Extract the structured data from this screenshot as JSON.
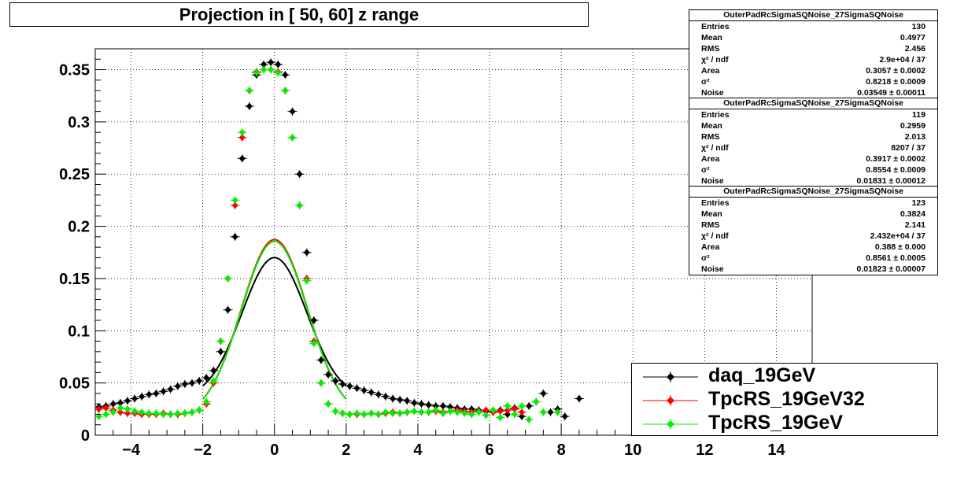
{
  "title": "Projection in [  50,  60] z range",
  "stats_boxes": [
    {
      "title": "OuterPadRcSigmaSQNoise_27SigmaSQNoise",
      "rows": [
        {
          "label": "Entries",
          "value": "130"
        },
        {
          "label": "Mean",
          "value": "0.4977"
        },
        {
          "label": "RMS",
          "value": "2.456"
        },
        {
          "label": "χ² / ndf",
          "value": "2.9e+04 / 37"
        },
        {
          "label": "Area",
          "value": "0.3057 ± 0.0002"
        },
        {
          "label": "σ²",
          "value": "0.8218 ± 0.0009"
        },
        {
          "label": "Noise",
          "value": "0.03549 ± 0.00011"
        }
      ]
    },
    {
      "title": "OuterPadRcSigmaSQNoise_27SigmaSQNoise",
      "rows": [
        {
          "label": "Entries",
          "value": "119"
        },
        {
          "label": "Mean",
          "value": "0.2959"
        },
        {
          "label": "RMS",
          "value": "2.013"
        },
        {
          "label": "χ² / ndf",
          "value": "8207 / 37"
        },
        {
          "label": "Area",
          "value": "0.3917 ± 0.0002"
        },
        {
          "label": "σ²",
          "value": "0.8554 ± 0.0009"
        },
        {
          "label": "Noise",
          "value": "0.01831 ± 0.00012"
        }
      ]
    },
    {
      "title": "OuterPadRcSigmaSQNoise_27SigmaSQNoise",
      "rows": [
        {
          "label": "Entries",
          "value": "123"
        },
        {
          "label": "Mean",
          "value": "0.3824"
        },
        {
          "label": "RMS",
          "value": "2.141"
        },
        {
          "label": "χ² / ndf",
          "value": "2.432e+04 / 37"
        },
        {
          "label": "Area",
          "value": "0.388 ± 0.000"
        },
        {
          "label": "σ²",
          "value": "0.8561 ± 0.0005"
        },
        {
          "label": "Noise",
          "value": "0.01823 ± 0.00007"
        }
      ]
    }
  ],
  "chart_data": {
    "type": "scatter",
    "xlim": [
      -5,
      15
    ],
    "ylim": [
      0,
      0.37
    ],
    "grid": true,
    "legend_position": "bottom-right",
    "x_ticks": [
      "−4",
      "−2",
      "0",
      "2",
      "4",
      "6",
      "8",
      "10",
      "12",
      "14"
    ],
    "x_tick_values": [
      -4,
      -2,
      0,
      2,
      4,
      6,
      8,
      10,
      12,
      14
    ],
    "y_ticks": [
      "0",
      "0.05",
      "0.1",
      "0.15",
      "0.2",
      "0.25",
      "0.3",
      "0.35"
    ],
    "y_tick_values": [
      0,
      0.05,
      0.1,
      0.15,
      0.2,
      0.25,
      0.3,
      0.35
    ],
    "series": [
      {
        "name": "daq_19GeV",
        "color": "#000000",
        "x": [
          -4.9,
          -4.7,
          -4.5,
          -4.3,
          -4.1,
          -3.9,
          -3.7,
          -3.5,
          -3.3,
          -3.1,
          -2.9,
          -2.7,
          -2.5,
          -2.3,
          -2.1,
          -1.9,
          -1.7,
          -1.5,
          -1.3,
          -1.1,
          -0.9,
          -0.7,
          -0.5,
          -0.3,
          -0.1,
          0.1,
          0.3,
          0.5,
          0.7,
          0.9,
          1.1,
          1.3,
          1.5,
          1.7,
          1.9,
          2.1,
          2.3,
          2.5,
          2.7,
          2.9,
          3.1,
          3.3,
          3.5,
          3.7,
          3.9,
          4.1,
          4.3,
          4.5,
          4.7,
          4.9,
          5.1,
          5.3,
          5.5,
          5.7,
          5.9,
          6.1,
          6.3,
          6.5,
          6.7,
          6.9,
          7.1,
          7.3,
          7.5,
          7.7,
          7.9,
          8.1,
          8.5
        ],
        "y": [
          0.027,
          0.028,
          0.03,
          0.031,
          0.033,
          0.035,
          0.037,
          0.039,
          0.04,
          0.042,
          0.044,
          0.047,
          0.049,
          0.05,
          0.052,
          0.055,
          0.062,
          0.08,
          0.12,
          0.19,
          0.265,
          0.315,
          0.345,
          0.355,
          0.357,
          0.355,
          0.345,
          0.31,
          0.25,
          0.175,
          0.11,
          0.072,
          0.058,
          0.052,
          0.049,
          0.047,
          0.045,
          0.043,
          0.041,
          0.039,
          0.037,
          0.035,
          0.034,
          0.033,
          0.031,
          0.03,
          0.029,
          0.028,
          0.028,
          0.027,
          0.026,
          0.025,
          0.025,
          0.024,
          0.023,
          0.022,
          0.024,
          0.02,
          0.026,
          0.018,
          0.028,
          0.032,
          0.04,
          0.022,
          0.025,
          0.018,
          0.035
        ]
      },
      {
        "name": "TpcRS_19GeV32",
        "color": "#ff0000",
        "x": [
          -4.9,
          -4.7,
          -4.5,
          -4.3,
          -4.1,
          -3.9,
          -3.7,
          -3.5,
          -3.3,
          -3.1,
          -2.9,
          -2.7,
          -2.5,
          -2.3,
          -2.1,
          -1.9,
          -1.7,
          -1.5,
          -1.3,
          -1.1,
          -0.9,
          -0.7,
          -0.5,
          -0.3,
          -0.1,
          0.1,
          0.3,
          0.5,
          0.7,
          0.9,
          1.1,
          1.3,
          1.5,
          1.7,
          1.9,
          2.1,
          2.3,
          2.5,
          2.7,
          2.9,
          3.1,
          3.3,
          3.5,
          3.7,
          3.9,
          4.1,
          4.3,
          4.5,
          4.7,
          4.9,
          5.1,
          5.3,
          5.5,
          5.7,
          5.9,
          6.1,
          6.3,
          6.5,
          6.7,
          6.9
        ],
        "y": [
          0.025,
          0.026,
          0.024,
          0.022,
          0.021,
          0.021,
          0.02,
          0.02,
          0.02,
          0.021,
          0.02,
          0.02,
          0.021,
          0.022,
          0.024,
          0.03,
          0.05,
          0.09,
          0.15,
          0.22,
          0.285,
          0.33,
          0.348,
          0.35,
          0.35,
          0.348,
          0.33,
          0.285,
          0.22,
          0.15,
          0.09,
          0.05,
          0.03,
          0.023,
          0.021,
          0.02,
          0.02,
          0.02,
          0.021,
          0.02,
          0.021,
          0.022,
          0.021,
          0.022,
          0.023,
          0.022,
          0.022,
          0.023,
          0.022,
          0.023,
          0.024,
          0.023,
          0.022,
          0.023,
          0.024,
          0.022,
          0.023,
          0.024,
          0.025,
          0.022
        ]
      },
      {
        "name": "TpcRS_19GeV",
        "color": "#00ee00",
        "x": [
          -4.9,
          -4.7,
          -4.5,
          -4.3,
          -4.1,
          -3.9,
          -3.7,
          -3.5,
          -3.3,
          -3.1,
          -2.9,
          -2.7,
          -2.5,
          -2.3,
          -2.1,
          -1.9,
          -1.7,
          -1.5,
          -1.3,
          -1.1,
          -0.9,
          -0.7,
          -0.5,
          -0.3,
          -0.1,
          0.1,
          0.3,
          0.5,
          0.7,
          0.9,
          1.1,
          1.3,
          1.5,
          1.7,
          1.9,
          2.1,
          2.3,
          2.5,
          2.7,
          2.9,
          3.1,
          3.3,
          3.5,
          3.7,
          3.9,
          4.1,
          4.3,
          4.5,
          4.7,
          4.9,
          5.1,
          5.3,
          5.5,
          5.7,
          5.9,
          6.1,
          6.3,
          6.5,
          6.7,
          6.9,
          7.1,
          7.3,
          7.5,
          7.9
        ],
        "y": [
          0.018,
          0.02,
          0.022,
          0.026,
          0.025,
          0.023,
          0.022,
          0.021,
          0.021,
          0.02,
          0.02,
          0.021,
          0.021,
          0.022,
          0.024,
          0.032,
          0.052,
          0.09,
          0.15,
          0.225,
          0.29,
          0.33,
          0.347,
          0.35,
          0.35,
          0.347,
          0.33,
          0.285,
          0.22,
          0.148,
          0.088,
          0.05,
          0.03,
          0.023,
          0.021,
          0.02,
          0.021,
          0.02,
          0.021,
          0.02,
          0.022,
          0.021,
          0.021,
          0.022,
          0.023,
          0.022,
          0.022,
          0.024,
          0.021,
          0.023,
          0.022,
          0.021,
          0.02,
          0.022,
          0.019,
          0.024,
          0.017,
          0.028,
          0.02,
          0.028,
          0.015,
          0.032,
          0.022,
          0.022
        ]
      }
    ],
    "fits": [
      {
        "color": "#000000",
        "norm": 0.3057,
        "sigma2": 0.8218,
        "noise": 0.03549
      },
      {
        "color": "#ff0000",
        "norm": 0.3917,
        "sigma2": 0.8554,
        "noise": 0.01831
      },
      {
        "color": "#00ee00",
        "norm": 0.388,
        "sigma2": 0.8561,
        "noise": 0.01823
      }
    ]
  }
}
